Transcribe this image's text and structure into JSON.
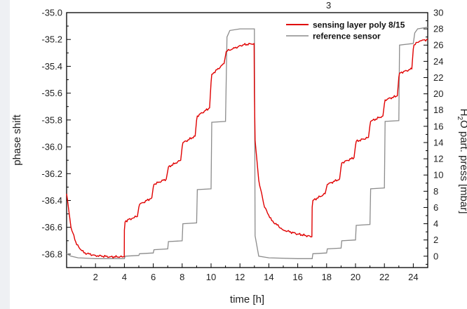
{
  "chart_data": {
    "type": "line",
    "xlabel": "time [h]",
    "ylabel_left": "phase shift",
    "ylabel_right": "H",
    "ylabel_right_rest": "O part. press [mbar]",
    "ylabel_right_sub": "2",
    "corner_mark": "3",
    "xlim": [
      0,
      25
    ],
    "ylim_left": [
      -36.9,
      -35.0
    ],
    "ylim_right": [
      -1.4,
      30
    ],
    "x_ticks": [
      2,
      4,
      6,
      8,
      10,
      12,
      14,
      16,
      18,
      20,
      22,
      24
    ],
    "y_left_ticks": [
      -35.0,
      -35.2,
      -35.4,
      -35.6,
      -35.8,
      -36.0,
      -36.2,
      -36.4,
      -36.6,
      -36.8
    ],
    "y_left_tick_labels": [
      "-35.0",
      "-35.2",
      "-35.4",
      "-35.6",
      "-35.8",
      "-36.0",
      "-36.2",
      "-36.4",
      "-36.6",
      "-36.8"
    ],
    "y_right_ticks": [
      0,
      2,
      4,
      6,
      8,
      10,
      12,
      14,
      16,
      18,
      20,
      22,
      24,
      26,
      28,
      30
    ],
    "legend_position": "top-right",
    "series": [
      {
        "name": "sensing layer poly 8/15",
        "axis": "left",
        "color": "#e00000",
        "x": [
          0,
          0.3,
          0.7,
          1.2,
          2,
          3,
          3.99,
          4.0,
          4.05,
          4.3,
          4.9,
          5.0,
          5.05,
          5.9,
          6.0,
          6.05,
          6.9,
          7.0,
          7.05,
          7.9,
          8.0,
          8.05,
          8.9,
          9.0,
          9.05,
          9.9,
          10.0,
          10.05,
          10.9,
          11.0,
          11.05,
          11.5,
          12.2,
          12.98,
          13.0,
          13.05,
          13.3,
          13.7,
          14.2,
          15,
          16,
          16.98,
          17.0,
          17.05,
          17.9,
          18.0,
          18.05,
          18.9,
          19.0,
          19.05,
          19.9,
          20.0,
          20.05,
          20.9,
          21.0,
          21.05,
          21.9,
          22.0,
          22.05,
          22.9,
          23.0,
          23.05,
          23.9,
          24.0,
          24.05,
          24.5,
          25.0
        ],
        "y": [
          -36.35,
          -36.6,
          -36.73,
          -36.79,
          -36.81,
          -36.82,
          -36.82,
          -36.62,
          -36.56,
          -36.54,
          -36.52,
          -36.45,
          -36.43,
          -36.38,
          -36.3,
          -36.28,
          -36.24,
          -36.18,
          -36.15,
          -36.1,
          -36.0,
          -35.97,
          -35.92,
          -35.8,
          -35.77,
          -35.71,
          -35.52,
          -35.46,
          -35.38,
          -35.32,
          -35.29,
          -35.27,
          -35.24,
          -35.23,
          -35.6,
          -35.95,
          -36.25,
          -36.45,
          -36.55,
          -36.62,
          -36.65,
          -36.67,
          -36.45,
          -36.4,
          -36.35,
          -36.3,
          -36.28,
          -36.24,
          -36.15,
          -36.12,
          -36.08,
          -35.99,
          -35.96,
          -35.93,
          -35.84,
          -35.81,
          -35.77,
          -35.68,
          -35.65,
          -35.62,
          -35.48,
          -35.45,
          -35.42,
          -35.27,
          -35.24,
          -35.21,
          -35.2
        ]
      },
      {
        "name": "reference sensor",
        "axis": "right",
        "color": "#8c8c8c",
        "x": [
          0,
          0.3,
          0.8,
          2,
          4.0,
          4.05,
          5.0,
          5.05,
          6.0,
          6.05,
          7.0,
          7.05,
          8.0,
          8.05,
          9.0,
          9.05,
          10.0,
          10.05,
          11.0,
          11.1,
          11.3,
          12.0,
          13.0,
          13.05,
          13.3,
          14.0,
          16.0,
          17.0,
          17.05,
          18.0,
          18.05,
          19.0,
          19.05,
          20.0,
          20.05,
          21.0,
          21.05,
          22.0,
          22.05,
          23.0,
          23.05,
          24.0,
          24.1,
          24.3,
          25.0
        ],
        "y": [
          0.3,
          0.0,
          -0.2,
          -0.3,
          -0.3,
          0.0,
          0.1,
          0.3,
          0.4,
          0.8,
          0.9,
          1.8,
          1.9,
          4.0,
          4.1,
          8.2,
          8.3,
          16.5,
          16.6,
          27.0,
          27.8,
          28.0,
          28.0,
          2.5,
          0.0,
          -0.2,
          -0.3,
          -0.3,
          0.3,
          0.4,
          0.9,
          1.0,
          1.9,
          2.0,
          3.8,
          3.9,
          8.3,
          8.4,
          16.6,
          16.7,
          26.0,
          26.2,
          27.5,
          28.0,
          28.2
        ]
      }
    ]
  }
}
